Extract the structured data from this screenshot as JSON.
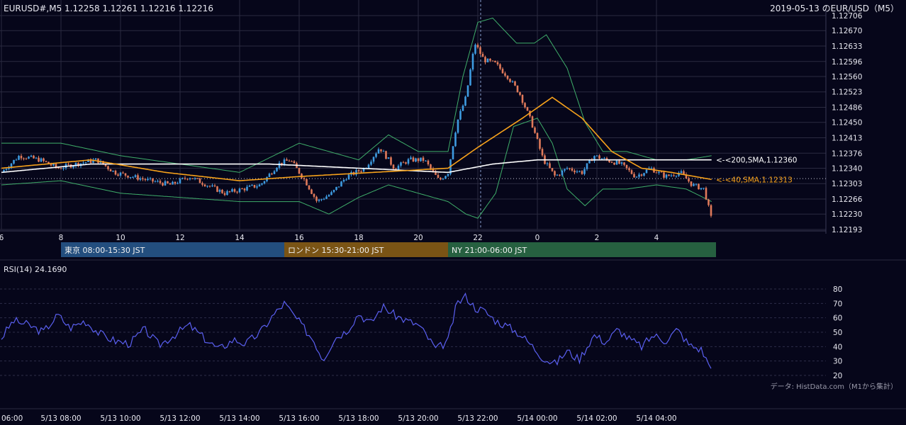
{
  "header": {
    "symbol_info": "EURUSD#,M5 1.12258 1.12261 1.12216 1.12216",
    "date_title": "2019-05-13 のEUR/USD（M5）"
  },
  "colors": {
    "background": "#06061a",
    "grid": "#2a2a40",
    "candle_up": "#3e9be0",
    "candle_down": "#e07a5a",
    "bollinger": "#3fae6a",
    "sma40": "#f7a21b",
    "sma200": "#ffffff",
    "rsi": "#5a5ff0",
    "session_tokyo": "#234e7e",
    "session_london": "#7a5415",
    "session_ny": "#266040"
  },
  "sessions": [
    {
      "label": "東京 08:00-15:30 JST",
      "color": "#234e7e"
    },
    {
      "label": "ロンドン 15:30-21:00 JST",
      "color": "#7a5415"
    },
    {
      "label": "NY 21:00-06:00 JST",
      "color": "#266040"
    }
  ],
  "rsi_header": "RSI(14) 24.1690",
  "footer_note": "データ: HistData.com（M1から集計）",
  "chart_data": [
    {
      "type": "candlestick",
      "title": "2019-05-13 のEUR/USD（M5）",
      "y_ticks": [
        "1.12706",
        "1.12670",
        "1.12633",
        "1.12596",
        "1.12560",
        "1.12523",
        "1.12486",
        "1.12450",
        "1.12413",
        "1.12376",
        "1.12340",
        "1.12303",
        "1.12266",
        "1.12230",
        "1.12193"
      ],
      "ylim": [
        1.12193,
        1.12706
      ],
      "x_hour_ticks": [
        "6",
        "8",
        "10",
        "12",
        "14",
        "16",
        "18",
        "20",
        "22",
        "0",
        "2",
        "4"
      ],
      "x_hours": [
        6,
        8,
        10,
        12,
        14,
        16,
        18,
        20,
        22,
        24,
        26,
        28
      ],
      "xlim_hours": [
        6,
        30
      ],
      "annotations": [
        {
          "label": "<-<200,SMA,1.12360",
          "value": 1.1236,
          "series": "sma200"
        },
        {
          "label": "<-<40,SMA,1.12313",
          "value": 1.12313,
          "series": "sma40"
        }
      ],
      "reference_level": 1.12315,
      "series_key_points": {
        "close": [
          [
            6.0,
            1.1233
          ],
          [
            6.6,
            1.1237
          ],
          [
            7.3,
            1.1236
          ],
          [
            7.9,
            1.1234
          ],
          [
            8.5,
            1.1235
          ],
          [
            9.2,
            1.1236
          ],
          [
            9.8,
            1.1233
          ],
          [
            10.4,
            1.1232
          ],
          [
            11.0,
            1.1231
          ],
          [
            11.7,
            1.123
          ],
          [
            12.3,
            1.1232
          ],
          [
            12.9,
            1.123
          ],
          [
            13.5,
            1.1228
          ],
          [
            14.1,
            1.1229
          ],
          [
            14.7,
            1.123
          ],
          [
            15.3,
            1.1235
          ],
          [
            15.7,
            1.1236
          ],
          [
            16.2,
            1.1231
          ],
          [
            16.6,
            1.1226
          ],
          [
            17.1,
            1.1228
          ],
          [
            17.6,
            1.1232
          ],
          [
            18.2,
            1.1234
          ],
          [
            18.7,
            1.1239
          ],
          [
            19.2,
            1.1234
          ],
          [
            19.7,
            1.1236
          ],
          [
            20.2,
            1.1236
          ],
          [
            20.7,
            1.1231
          ],
          [
            21.0,
            1.1233
          ],
          [
            21.3,
            1.1245
          ],
          [
            21.6,
            1.1251
          ],
          [
            21.9,
            1.1264
          ],
          [
            22.2,
            1.126
          ],
          [
            22.6,
            1.1259
          ],
          [
            23.0,
            1.1256
          ],
          [
            23.4,
            1.1252
          ],
          [
            23.8,
            1.1245
          ],
          [
            24.2,
            1.1236
          ],
          [
            24.6,
            1.1232
          ],
          [
            25.0,
            1.1234
          ],
          [
            25.5,
            1.1233
          ],
          [
            25.9,
            1.1237
          ],
          [
            26.3,
            1.1236
          ],
          [
            26.8,
            1.1235
          ],
          [
            27.3,
            1.1232
          ],
          [
            27.8,
            1.1234
          ],
          [
            28.3,
            1.1232
          ],
          [
            28.8,
            1.1233
          ],
          [
            29.2,
            1.123
          ],
          [
            29.6,
            1.1229
          ],
          [
            29.85,
            1.12216
          ]
        ],
        "sma40": [
          [
            6.0,
            1.1234
          ],
          [
            9.0,
            1.1236
          ],
          [
            11.5,
            1.1233
          ],
          [
            14.0,
            1.1231
          ],
          [
            16.0,
            1.1232
          ],
          [
            18.5,
            1.1233
          ],
          [
            21.0,
            1.1234
          ],
          [
            22.0,
            1.1239
          ],
          [
            23.5,
            1.1246
          ],
          [
            24.5,
            1.1251
          ],
          [
            25.5,
            1.1246
          ],
          [
            26.5,
            1.1238
          ],
          [
            27.5,
            1.1234
          ],
          [
            28.5,
            1.1233
          ],
          [
            29.85,
            1.12313
          ]
        ],
        "sma200": [
          [
            6.0,
            1.1233
          ],
          [
            9.0,
            1.1235
          ],
          [
            12.0,
            1.1235
          ],
          [
            15.0,
            1.1235
          ],
          [
            18.0,
            1.1234
          ],
          [
            21.0,
            1.1233
          ],
          [
            22.5,
            1.1235
          ],
          [
            24.0,
            1.1236
          ],
          [
            26.0,
            1.1236
          ],
          [
            28.0,
            1.1236
          ],
          [
            29.85,
            1.1236
          ]
        ],
        "bb_upper": [
          [
            6.0,
            1.124
          ],
          [
            8.0,
            1.124
          ],
          [
            10.0,
            1.1237
          ],
          [
            12.0,
            1.1235
          ],
          [
            14.0,
            1.1233
          ],
          [
            16.0,
            1.124
          ],
          [
            17.0,
            1.1238
          ],
          [
            18.0,
            1.1236
          ],
          [
            19.0,
            1.1242
          ],
          [
            20.0,
            1.1238
          ],
          [
            21.0,
            1.1238
          ],
          [
            21.5,
            1.1256
          ],
          [
            22.0,
            1.1269
          ],
          [
            22.5,
            1.127
          ],
          [
            23.3,
            1.1264
          ],
          [
            23.9,
            1.1264
          ],
          [
            24.3,
            1.1266
          ],
          [
            25.0,
            1.1258
          ],
          [
            25.6,
            1.1245
          ],
          [
            26.2,
            1.1238
          ],
          [
            27.0,
            1.1238
          ],
          [
            28.0,
            1.1236
          ],
          [
            29.0,
            1.1236
          ],
          [
            29.85,
            1.1237
          ]
        ],
        "bb_lower": [
          [
            6.0,
            1.123
          ],
          [
            8.0,
            1.1231
          ],
          [
            10.0,
            1.1228
          ],
          [
            12.0,
            1.1227
          ],
          [
            14.0,
            1.1226
          ],
          [
            16.0,
            1.1226
          ],
          [
            17.0,
            1.1223
          ],
          [
            18.0,
            1.1227
          ],
          [
            19.0,
            1.123
          ],
          [
            20.0,
            1.1228
          ],
          [
            21.0,
            1.1226
          ],
          [
            21.6,
            1.1223
          ],
          [
            22.0,
            1.1222
          ],
          [
            22.6,
            1.1228
          ],
          [
            23.2,
            1.1244
          ],
          [
            24.0,
            1.1246
          ],
          [
            24.5,
            1.124
          ],
          [
            25.0,
            1.1229
          ],
          [
            25.6,
            1.1225
          ],
          [
            26.2,
            1.1229
          ],
          [
            27.0,
            1.1229
          ],
          [
            28.0,
            1.123
          ],
          [
            29.0,
            1.1229
          ],
          [
            29.85,
            1.1226
          ]
        ]
      }
    },
    {
      "type": "line",
      "title": "RSI(14) 24.1690",
      "y_ticks": [
        "80",
        "70",
        "60",
        "50",
        "40",
        "30",
        "20"
      ],
      "ylim": [
        20,
        80
      ],
      "x_labels": [
        "06:00",
        "5/13 08:00",
        "5/13 10:00",
        "5/13 12:00",
        "5/13 14:00",
        "5/13 16:00",
        "5/13 18:00",
        "5/13 20:00",
        "5/13 22:00",
        "5/14 00:00",
        "5/14 02:00",
        "5/14 04:00"
      ],
      "x_hours": [
        6,
        8,
        10,
        12,
        14,
        16,
        18,
        20,
        22,
        24,
        26,
        28
      ],
      "series": [
        {
          "values": [
            [
              6.0,
              46
            ],
            [
              6.4,
              58
            ],
            [
              6.9,
              55
            ],
            [
              7.4,
              50
            ],
            [
              7.9,
              62
            ],
            [
              8.3,
              53
            ],
            [
              8.8,
              58
            ],
            [
              9.3,
              49
            ],
            [
              9.8,
              44
            ],
            [
              10.3,
              42
            ],
            [
              10.8,
              52
            ],
            [
              11.3,
              41
            ],
            [
              11.8,
              48
            ],
            [
              12.3,
              55
            ],
            [
              12.8,
              46
            ],
            [
              13.3,
              38
            ],
            [
              13.8,
              45
            ],
            [
              14.2,
              42
            ],
            [
              14.7,
              50
            ],
            [
              15.1,
              61
            ],
            [
              15.5,
              70
            ],
            [
              16.0,
              57
            ],
            [
              16.5,
              44
            ],
            [
              16.8,
              31
            ],
            [
              17.2,
              46
            ],
            [
              17.6,
              51
            ],
            [
              18.0,
              63
            ],
            [
              18.4,
              56
            ],
            [
              18.8,
              68
            ],
            [
              19.2,
              62
            ],
            [
              19.6,
              58
            ],
            [
              20.0,
              55
            ],
            [
              20.3,
              47
            ],
            [
              20.6,
              38
            ],
            [
              21.0,
              44
            ],
            [
              21.3,
              70
            ],
            [
              21.6,
              75
            ],
            [
              21.9,
              67
            ],
            [
              22.2,
              65
            ],
            [
              22.6,
              58
            ],
            [
              23.0,
              54
            ],
            [
              23.4,
              49
            ],
            [
              23.8,
              41
            ],
            [
              24.2,
              32
            ],
            [
              24.6,
              28
            ],
            [
              25.0,
              37
            ],
            [
              25.4,
              31
            ],
            [
              25.9,
              48
            ],
            [
              26.3,
              43
            ],
            [
              26.7,
              52
            ],
            [
              27.1,
              45
            ],
            [
              27.5,
              40
            ],
            [
              27.9,
              48
            ],
            [
              28.3,
              44
            ],
            [
              28.7,
              52
            ],
            [
              29.1,
              41
            ],
            [
              29.5,
              38
            ],
            [
              29.85,
              24.17
            ]
          ]
        }
      ]
    }
  ]
}
